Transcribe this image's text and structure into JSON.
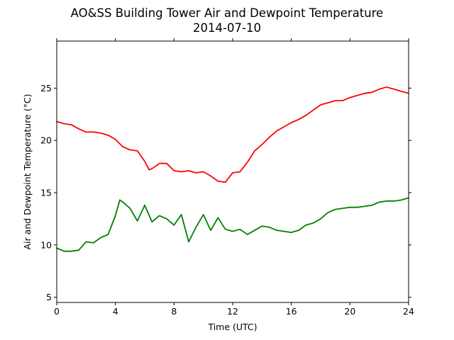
{
  "chart_data": {
    "type": "line",
    "title": "AO&SS Building Tower Air and Dewpoint Temperature",
    "subtitle": "2014-07-10",
    "xlabel": "Time (UTC)",
    "ylabel": "Air and Dewpoint Temperature (°C)",
    "xlim": [
      0,
      24
    ],
    "ylim": [
      4.5,
      29.5
    ],
    "xticks": [
      0,
      4,
      8,
      12,
      16,
      20,
      24
    ],
    "yticks": [
      5,
      10,
      15,
      20,
      25
    ],
    "grid": false,
    "legend": "none",
    "series": [
      {
        "color": "#ff0000",
        "x": [
          0,
          0.5,
          1,
          1.5,
          2,
          2.5,
          3,
          3.5,
          4,
          4.5,
          5,
          5.5,
          6,
          6.3,
          6.5,
          7,
          7.5,
          8,
          8.5,
          9,
          9.5,
          10,
          10.5,
          11,
          11.5,
          12,
          12.5,
          13,
          13.5,
          14,
          14.5,
          15,
          15.5,
          16,
          16.5,
          17,
          17.5,
          18,
          18.5,
          19,
          19.5,
          20,
          20.5,
          21,
          21.5,
          22,
          22.5,
          23,
          23.5,
          24
        ],
        "y": [
          21.8,
          21.6,
          21.5,
          21.1,
          20.8,
          20.8,
          20.7,
          20.5,
          20.1,
          19.4,
          19.1,
          19.0,
          18.0,
          17.2,
          17.3,
          17.8,
          17.8,
          17.1,
          17.0,
          17.1,
          16.9,
          17.0,
          16.6,
          16.1,
          16.0,
          16.9,
          17.0,
          17.9,
          19.0,
          19.6,
          20.3,
          20.9,
          21.3,
          21.7,
          22.0,
          22.4,
          22.9,
          23.4,
          23.6,
          23.8,
          23.8,
          24.1,
          24.3,
          24.5,
          24.6,
          24.9,
          25.1,
          24.9,
          24.7,
          24.5
        ]
      },
      {
        "color": "#008000",
        "x": [
          0,
          0.5,
          1,
          1.5,
          2,
          2.5,
          3,
          3.5,
          4,
          4.3,
          4.6,
          5,
          5.5,
          6,
          6.5,
          7,
          7.5,
          8,
          8.5,
          9,
          9.5,
          10,
          10.5,
          11,
          11.5,
          12,
          12.5,
          13,
          13.5,
          14,
          14.5,
          15,
          15.5,
          16,
          16.5,
          17,
          17.5,
          18,
          18.5,
          19,
          19.5,
          20,
          20.5,
          21,
          21.5,
          22,
          22.5,
          23,
          23.5,
          24
        ],
        "y": [
          9.7,
          9.4,
          9.4,
          9.5,
          10.3,
          10.2,
          10.7,
          11.0,
          12.8,
          14.3,
          14.0,
          13.5,
          12.3,
          13.8,
          12.2,
          12.8,
          12.5,
          11.9,
          12.9,
          10.3,
          11.7,
          12.9,
          11.4,
          12.6,
          11.5,
          11.3,
          11.5,
          11.0,
          11.4,
          11.8,
          11.7,
          11.4,
          11.3,
          11.2,
          11.4,
          11.9,
          12.1,
          12.5,
          13.1,
          13.4,
          13.5,
          13.6,
          13.6,
          13.7,
          13.8,
          14.1,
          14.2,
          14.2,
          14.3,
          14.5
        ]
      }
    ]
  }
}
